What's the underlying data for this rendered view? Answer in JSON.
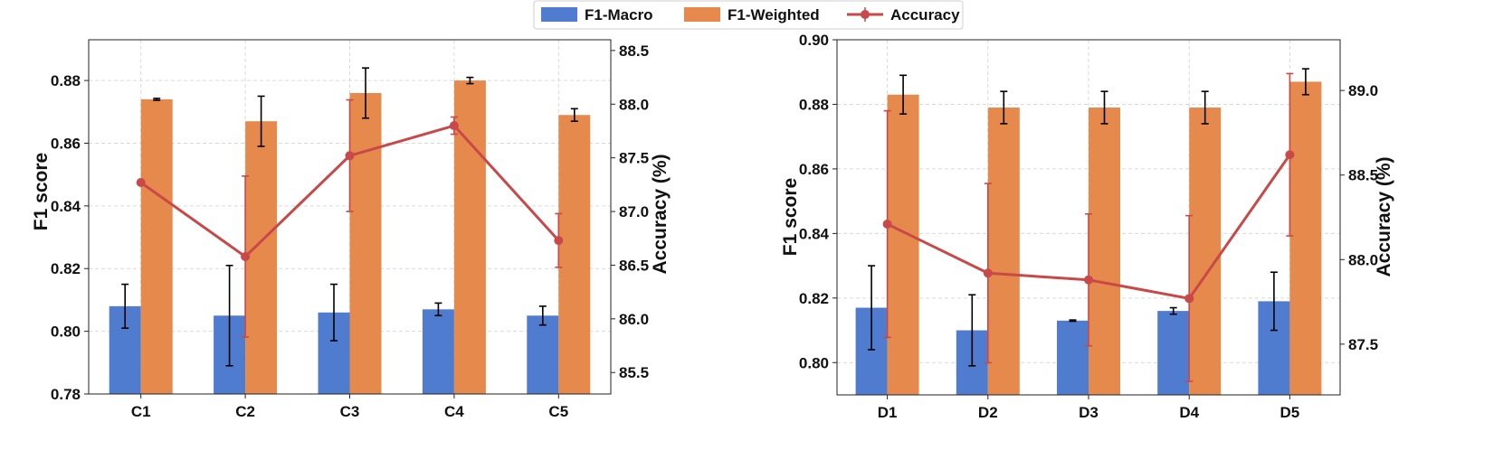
{
  "colors": {
    "macro": "#4f7ccf",
    "weighted": "#e58a4c",
    "accuracy": "#c94848",
    "errbar": "#000000"
  },
  "legend": {
    "macro": "F1-Macro",
    "weighted": "F1-Weighted",
    "accuracy": "Accuracy"
  },
  "chart_data": [
    {
      "type": "bar",
      "categories": [
        "C1",
        "C2",
        "C3",
        "C4",
        "C5"
      ],
      "ylabel": "F1 score",
      "y2label": "Accuracy (%)",
      "ylim": [
        0.78,
        0.893
      ],
      "yticks": [
        0.78,
        0.8,
        0.82,
        0.84,
        0.86,
        0.88
      ],
      "y2lim": [
        85.3,
        88.6
      ],
      "y2ticks": [
        85.5,
        86.0,
        86.5,
        87.0,
        87.5,
        88.0,
        88.5
      ],
      "grid": true,
      "series": [
        {
          "name": "F1-Macro",
          "values": [
            0.808,
            0.805,
            0.806,
            0.807,
            0.805
          ],
          "errors": [
            0.007,
            0.016,
            0.009,
            0.002,
            0.003
          ]
        },
        {
          "name": "F1-Weighted",
          "values": [
            0.874,
            0.867,
            0.876,
            0.88,
            0.869
          ],
          "errors": [
            0.0003,
            0.008,
            0.008,
            0.001,
            0.002
          ]
        },
        {
          "name": "Accuracy",
          "axis": "right",
          "values": [
            87.27,
            86.58,
            87.52,
            87.8,
            86.73
          ],
          "errors": [
            0.0,
            0.75,
            0.52,
            0.08,
            0.25
          ]
        }
      ]
    },
    {
      "type": "bar",
      "categories": [
        "D1",
        "D2",
        "D3",
        "D4",
        "D5"
      ],
      "ylabel": "F1 score",
      "y2label": "Accuracy (%)",
      "ylim": [
        0.79,
        0.9
      ],
      "yticks": [
        0.8,
        0.82,
        0.84,
        0.86,
        0.88,
        0.9
      ],
      "y2lim": [
        87.2,
        89.3
      ],
      "y2ticks": [
        87.5,
        88.0,
        88.5,
        89.0
      ],
      "grid": true,
      "series": [
        {
          "name": "F1-Macro",
          "values": [
            0.817,
            0.81,
            0.813,
            0.816,
            0.819
          ],
          "errors": [
            0.013,
            0.011,
            0.0002,
            0.001,
            0.009
          ]
        },
        {
          "name": "F1-Weighted",
          "values": [
            0.883,
            0.879,
            0.879,
            0.879,
            0.887
          ],
          "errors": [
            0.006,
            0.005,
            0.005,
            0.005,
            0.004
          ]
        },
        {
          "name": "Accuracy",
          "axis": "right",
          "values": [
            88.21,
            87.92,
            87.88,
            87.77,
            88.62
          ],
          "errors": [
            0.67,
            0.53,
            0.39,
            0.49,
            0.48
          ]
        }
      ]
    }
  ]
}
